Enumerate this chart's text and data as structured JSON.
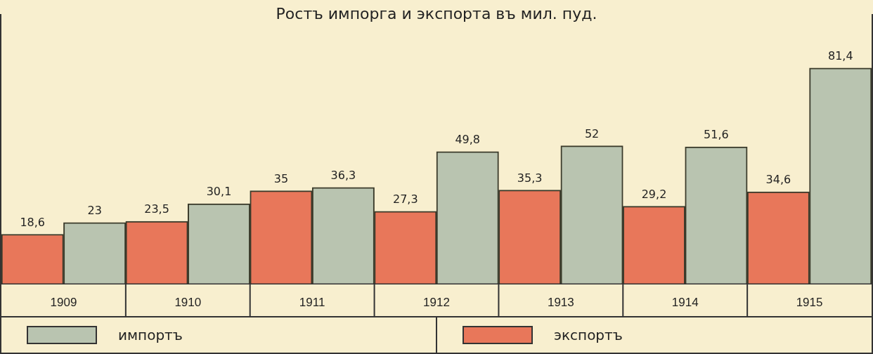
{
  "chart_data": {
    "type": "bar",
    "title": "Ростъ импорга и экспорта въ мил. пуд.",
    "categories": [
      "1909",
      "1910",
      "1911",
      "1912",
      "1913",
      "1914",
      "1915"
    ],
    "series": [
      {
        "name": "экспортъ",
        "color": "#e8775a",
        "values": [
          18.6,
          23.5,
          35,
          27.3,
          35.3,
          29.2,
          34.6
        ],
        "value_labels": [
          "18,6",
          "23,5",
          "35",
          "27,3",
          "35,3",
          "29,2",
          "34,6"
        ]
      },
      {
        "name": "импортъ",
        "color": "#b9c4b0",
        "values": [
          23,
          30.1,
          36.3,
          49.8,
          52,
          51.6,
          81.4
        ],
        "value_labels": [
          "23",
          "30,1",
          "36,3",
          "49,8",
          "52",
          "51,6",
          "81,4"
        ]
      }
    ],
    "grid": false,
    "legend": "bottom"
  }
}
